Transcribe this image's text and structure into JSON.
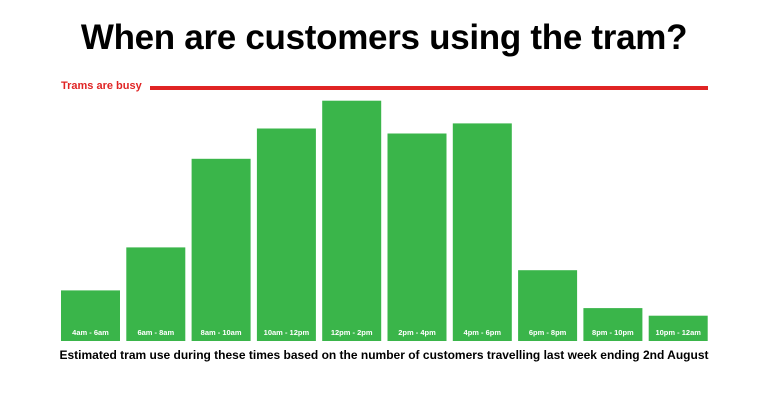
{
  "header": {
    "title": "When are customers using the tram?"
  },
  "threshold": {
    "label": "Trams are busy",
    "color": "#e02424"
  },
  "caption": "Estimated tram use during these times based on the number of customers travelling last week ending 2nd August",
  "chart_data": {
    "type": "bar",
    "title": "When are customers using the tram?",
    "categories": [
      "4am - 6am",
      "6am - 8am",
      "8am - 10am",
      "10am - 12pm",
      "12pm - 2pm",
      "2pm - 4pm",
      "4pm - 6pm",
      "6pm - 8pm",
      "8pm - 10pm",
      "10pm - 12am"
    ],
    "values": [
      20,
      37,
      72,
      84,
      95,
      82,
      86,
      28,
      13,
      10
    ],
    "xlabel": "",
    "ylabel": "",
    "ylim": [
      0,
      100
    ],
    "threshold_level": 100,
    "grid": false,
    "bar_color": "#3ab54a",
    "label_color": "#ffffff"
  }
}
